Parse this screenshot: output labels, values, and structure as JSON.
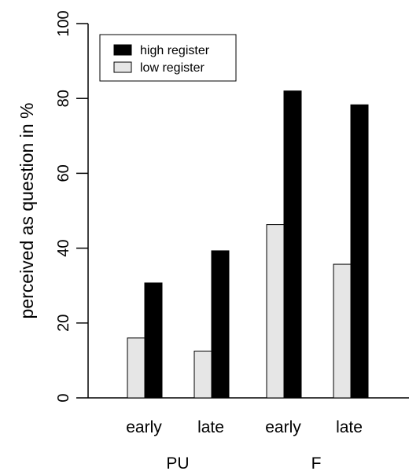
{
  "chart_data": {
    "type": "bar",
    "groups": [
      "PU",
      "F"
    ],
    "categories": [
      "early",
      "late",
      "early",
      "late"
    ],
    "category_groups": [
      "PU",
      "PU",
      "F",
      "F"
    ],
    "series": [
      {
        "name": "low register",
        "color": "#e6e6e6",
        "values": [
          16,
          12.5,
          46.3,
          35.7
        ]
      },
      {
        "name": "high register",
        "color": "#000000",
        "values": [
          30.7,
          39.3,
          82,
          78.3
        ]
      }
    ],
    "legend_order": [
      "high register",
      "low register"
    ],
    "legend": {
      "high_label": "high register",
      "low_label": "low register",
      "placement": "top-left"
    },
    "ylabel": "perceived as question in %",
    "ylim": [
      0,
      100
    ],
    "yticks": [
      0,
      20,
      40,
      60,
      80,
      100
    ],
    "grid": false
  }
}
